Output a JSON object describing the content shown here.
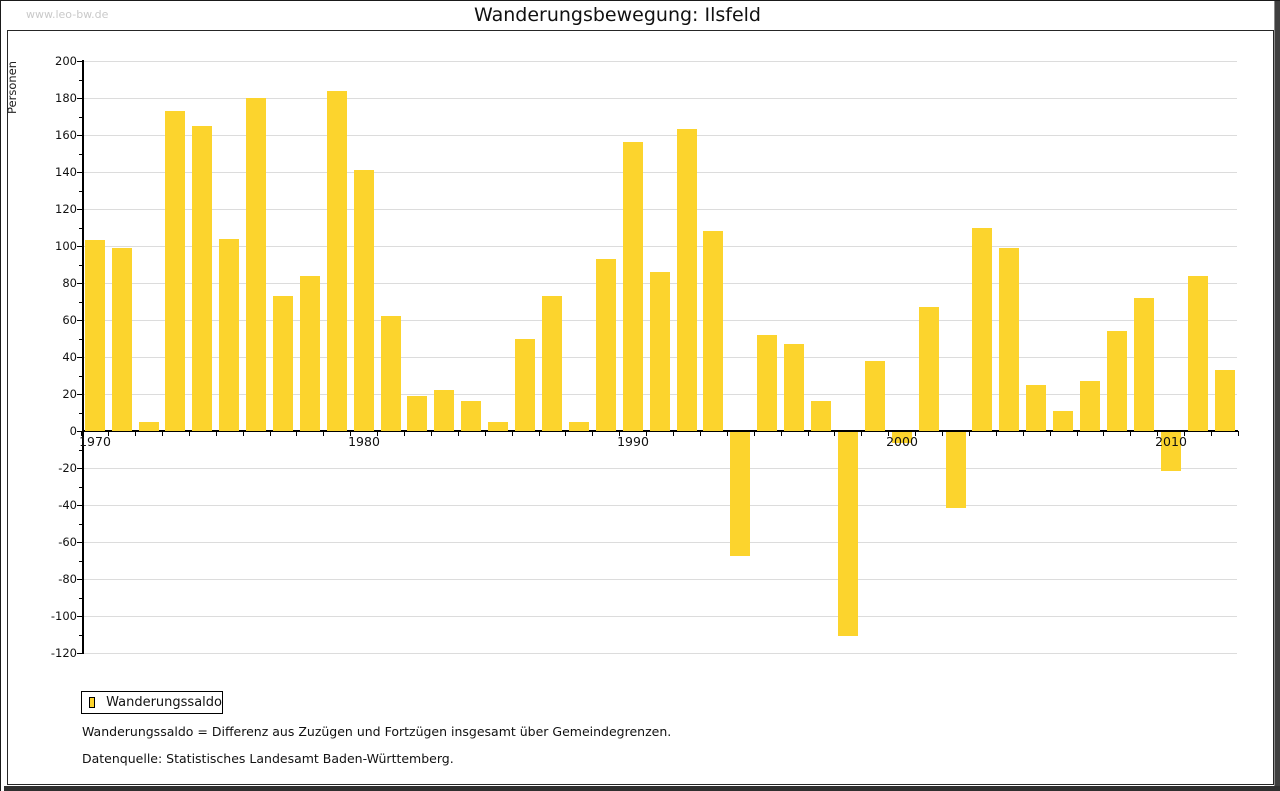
{
  "page": {
    "watermark": "www.leo-bw.de",
    "title": "Wanderungsbewegung: Ilsfeld"
  },
  "chart_data": {
    "type": "bar",
    "title": "Wanderungsbewegung: Ilsfeld",
    "ylabel": "Personen",
    "series_name": "Wanderungssaldo",
    "bar_color": "#fcd42d",
    "ylim": [
      -120,
      200
    ],
    "ytick_label_step": 20,
    "ytick_minor_step": 10,
    "grid": true,
    "legend_position": "bottom-left",
    "xticks_labeled": [
      1970,
      1980,
      1990,
      2000,
      2010
    ],
    "years": [
      1970,
      1971,
      1972,
      1973,
      1974,
      1975,
      1976,
      1977,
      1978,
      1979,
      1980,
      1981,
      1982,
      1983,
      1984,
      1985,
      1986,
      1987,
      1988,
      1989,
      1990,
      1991,
      1992,
      1993,
      1994,
      1995,
      1996,
      1997,
      1998,
      1999,
      2000,
      2001,
      2002,
      2003,
      2004,
      2005,
      2006,
      2007,
      2008,
      2009,
      2010,
      2011,
      2012
    ],
    "values": [
      103,
      99,
      5,
      173,
      165,
      104,
      180,
      73,
      84,
      184,
      141,
      62,
      19,
      22,
      16,
      5,
      50,
      73,
      5,
      93,
      156,
      86,
      163,
      108,
      -67,
      52,
      47,
      16,
      -110,
      38,
      -6,
      67,
      -41,
      110,
      99,
      25,
      11,
      27,
      54,
      72,
      -21,
      84,
      33
    ]
  },
  "legend": {
    "label": "Wanderungssaldo"
  },
  "footnotes": [
    "Wanderungssaldo = Differenz aus Zuzügen und Fortzügen insgesamt über Gemeindegrenzen.",
    "Datenquelle: Statistisches Landesamt Baden-Württemberg."
  ]
}
